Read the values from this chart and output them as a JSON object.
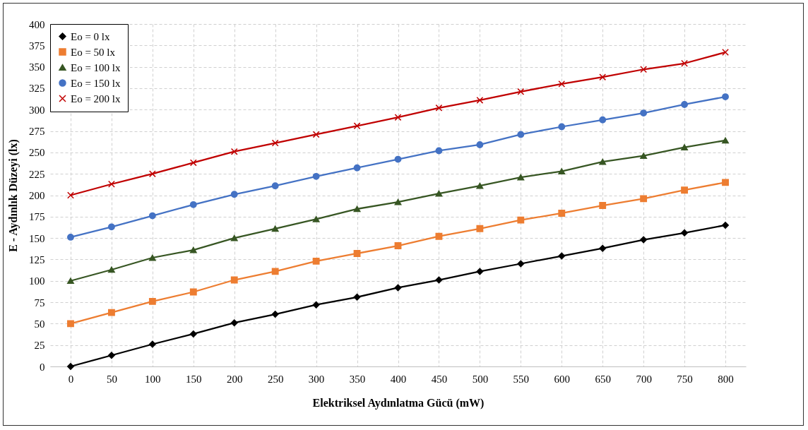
{
  "chart_data": {
    "type": "line",
    "xlabel": "Elektriksel Aydınlatma Gücü (mW)",
    "ylabel": "E - Aydınlık Düzeyi (lx)",
    "categories": [
      "0",
      "50",
      "100",
      "150",
      "200",
      "250",
      "300",
      "350",
      "400",
      "450",
      "500",
      "550",
      "600",
      "650",
      "700",
      "750",
      "800"
    ],
    "ylim": [
      0,
      400
    ],
    "yticks": [
      0,
      25,
      50,
      75,
      100,
      125,
      150,
      175,
      200,
      225,
      250,
      275,
      300,
      325,
      350,
      375,
      400
    ],
    "grid": true,
    "legend": "top left",
    "series": [
      {
        "name": "Eo = 0 lx",
        "color": "#000000",
        "marker": "diamond",
        "values": [
          0,
          13,
          26,
          38,
          51,
          61,
          72,
          81,
          92,
          101,
          111,
          120,
          129,
          138,
          148,
          156,
          165
        ]
      },
      {
        "name": "Eo = 50 lx",
        "color": "#ed7d31",
        "marker": "square",
        "values": [
          50,
          63,
          76,
          87,
          101,
          111,
          123,
          132,
          141,
          152,
          161,
          171,
          179,
          188,
          196,
          206,
          215
        ]
      },
      {
        "name": "Eo = 100 lx",
        "color": "#375623",
        "marker": "triangle",
        "values": [
          100,
          113,
          127,
          136,
          150,
          161,
          172,
          184,
          192,
          202,
          211,
          221,
          228,
          239,
          246,
          256,
          264
        ]
      },
      {
        "name": "Eo = 150 lx",
        "color": "#4472c4",
        "marker": "circle",
        "values": [
          151,
          163,
          176,
          189,
          201,
          211,
          222,
          232,
          242,
          252,
          259,
          271,
          280,
          288,
          296,
          306,
          315
        ]
      },
      {
        "name": "Eo = 200 lx",
        "color": "#c00000",
        "marker": "cross",
        "values": [
          200,
          213,
          225,
          238,
          251,
          261,
          271,
          281,
          291,
          302,
          311,
          321,
          330,
          338,
          347,
          354,
          367
        ]
      }
    ]
  }
}
